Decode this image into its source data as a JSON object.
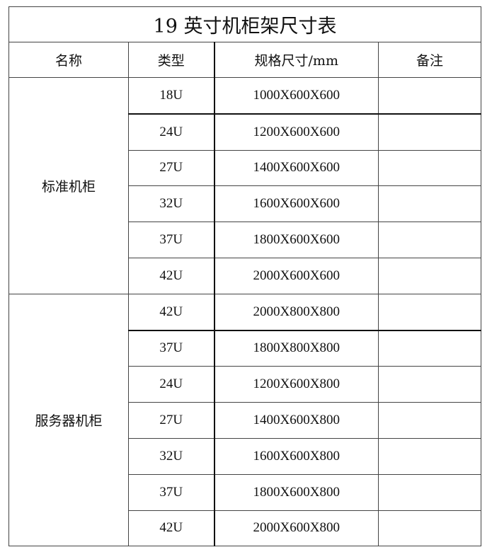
{
  "title": "19 英寸机柜架尺寸表",
  "headers": [
    "名称",
    "类型",
    "规格尺寸/mm",
    "备注"
  ],
  "groups": [
    {
      "name": "标准机柜",
      "rows": [
        {
          "type": "18U",
          "size": "1000X600X600",
          "note": ""
        },
        {
          "type": "24U",
          "size": "1200X600X600",
          "note": ""
        },
        {
          "type": "27U",
          "size": "1400X600X600",
          "note": ""
        },
        {
          "type": "32U",
          "size": "1600X600X600",
          "note": ""
        },
        {
          "type": "37U",
          "size": "1800X600X600",
          "note": ""
        },
        {
          "type": "42U",
          "size": "2000X600X600",
          "note": ""
        }
      ]
    },
    {
      "name": "服务器机柜",
      "rows": [
        {
          "type": "42U",
          "size": "2000X800X800",
          "note": ""
        },
        {
          "type": "37U",
          "size": "1800X800X800",
          "note": ""
        },
        {
          "type": "24U",
          "size": "1200X600X800",
          "note": ""
        },
        {
          "type": "27U",
          "size": "1400X600X800",
          "note": ""
        },
        {
          "type": "32U",
          "size": "1600X600X800",
          "note": ""
        },
        {
          "type": "37U",
          "size": "1800X600X800",
          "note": ""
        },
        {
          "type": "42U",
          "size": "2000X600X800",
          "note": ""
        }
      ]
    }
  ]
}
